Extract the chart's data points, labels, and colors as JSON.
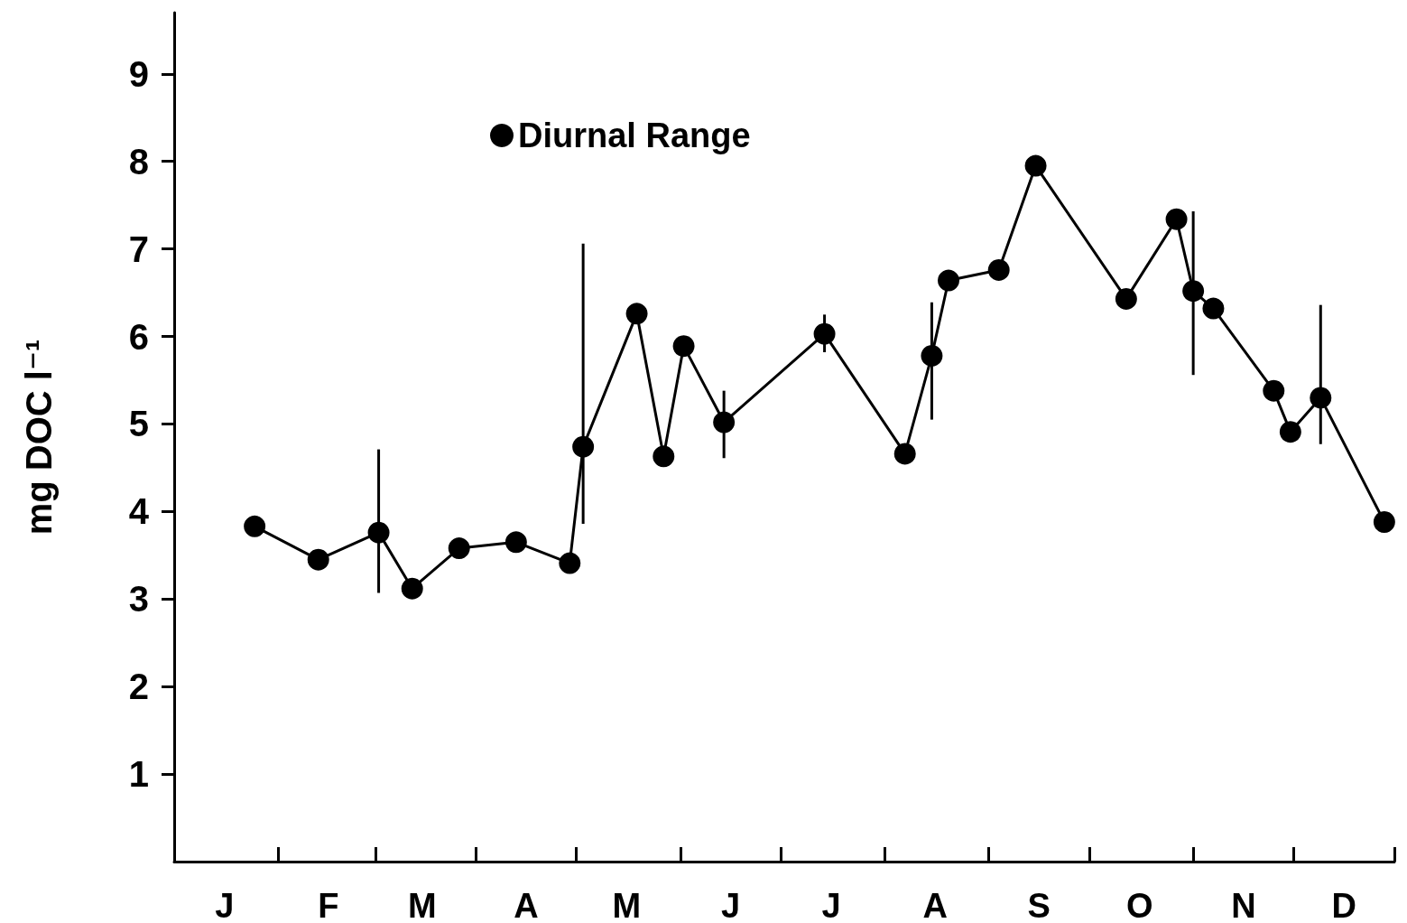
{
  "chart_data": {
    "type": "line",
    "ylabel": "mg DOC l⁻¹",
    "categories": [
      null,
      null,
      null,
      null,
      null,
      null,
      null,
      null,
      null,
      null,
      null,
      null,
      null,
      null,
      null,
      "J",
      null,
      null,
      null,
      null,
      null,
      null,
      null,
      null,
      null,
      null,
      null,
      null,
      null,
      null,
      null,
      null,
      null,
      null,
      null,
      null,
      null,
      null,
      null,
      null,
      null,
      null,
      null,
      null,
      null,
      null,
      "F",
      null,
      null,
      null,
      null,
      null,
      null,
      null,
      null,
      null,
      null,
      null,
      null,
      null,
      null,
      null,
      null,
      null,
      null,
      null,
      null,
      null,
      null,
      null,
      null,
      null,
      null,
      null,
      "M",
      null,
      null,
      null,
      null,
      null,
      null,
      null,
      null,
      null,
      null,
      null,
      null,
      null,
      null,
      null,
      null,
      null,
      null,
      null,
      null,
      null,
      null,
      null,
      null,
      null,
      null,
      null,
      null,
      null,
      null,
      "A",
      null,
      null,
      null,
      null,
      null,
      null,
      null,
      null,
      null,
      null,
      null,
      null,
      null,
      null,
      null,
      null,
      null,
      null,
      null,
      null,
      null,
      null,
      null,
      null,
      null,
      null,
      null,
      null,
      null,
      "M",
      null,
      null,
      null,
      null,
      null,
      null,
      null,
      null,
      null,
      null,
      null,
      null,
      null,
      null,
      null,
      null,
      null,
      null,
      null,
      null,
      null,
      null,
      null,
      null,
      null,
      null,
      null,
      null,
      null,
      null,
      "J",
      null,
      null,
      null,
      null,
      null,
      null,
      null,
      null,
      null,
      null,
      null,
      null,
      null,
      null,
      null,
      null,
      null,
      null,
      null,
      null,
      null,
      null,
      null,
      null,
      null,
      null,
      null,
      null,
      null,
      "J",
      null,
      null,
      null,
      null,
      null,
      null,
      null,
      null,
      null,
      null,
      null,
      null,
      null,
      null,
      null,
      null,
      null,
      null,
      null,
      null,
      null,
      null,
      null,
      null,
      null,
      null,
      null,
      null,
      null,
      null,
      "A",
      null,
      null,
      null,
      null,
      null,
      null,
      null,
      null,
      null,
      null,
      null,
      null,
      null,
      null,
      null,
      null,
      null,
      null,
      null,
      null,
      null,
      null,
      null,
      null,
      null,
      null,
      null,
      null,
      null,
      null,
      "S",
      null,
      null,
      null,
      null,
      null,
      null,
      null,
      null,
      null,
      null,
      null,
      null,
      null,
      null,
      null,
      null,
      null,
      null,
      null,
      null,
      null,
      null,
      null,
      null,
      null,
      null,
      null,
      null,
      null,
      "O",
      null,
      null,
      null,
      null,
      null,
      null,
      null,
      null,
      null,
      null,
      null,
      null,
      null,
      null,
      null,
      null,
      null,
      null,
      null,
      null,
      null,
      null,
      null,
      null,
      null,
      null,
      null,
      null,
      null,
      null,
      "N",
      null,
      null,
      null,
      null,
      null,
      null,
      null,
      null,
      null,
      null,
      null,
      null,
      null,
      null,
      null,
      null,
      null,
      null,
      null,
      null,
      null,
      null,
      null,
      null,
      null,
      null,
      null,
      null,
      null,
      "D",
      null,
      null,
      null,
      null,
      null,
      null,
      null,
      null,
      null,
      null,
      null,
      null,
      null,
      null,
      null
    ],
    "ylim": [
      0,
      9.7
    ],
    "yticks": [
      1,
      2,
      3,
      4,
      5,
      6,
      7,
      8,
      9
    ],
    "grid": false,
    "legend": "top left",
    "marker": "circle",
    "line_style": "solid",
    "series": [
      {
        "name": "Diurnal Range",
        "color": "#000000",
        "values": [
          null,
          null,
          null,
          null,
          null,
          null,
          null,
          null,
          null,
          null,
          null,
          null,
          null,
          null,
          null,
          null,
          null,
          null,
          null,
          null,
          null,
          null,
          null,
          null,
          3.83,
          null,
          null,
          null,
          null,
          null,
          null,
          null,
          null,
          null,
          null,
          null,
          null,
          null,
          null,
          null,
          null,
          null,
          null,
          3.45,
          null,
          null,
          null,
          null,
          null,
          null,
          null,
          null,
          null,
          null,
          null,
          null,
          null,
          null,
          null,
          null,
          null,
          3.76,
          null,
          null,
          null,
          null,
          null,
          null,
          null,
          null,
          null,
          3.12,
          null,
          null,
          null,
          null,
          null,
          null,
          null,
          null,
          null,
          null,
          null,
          null,
          null,
          3.58,
          null,
          null,
          null,
          null,
          null,
          null,
          null,
          null,
          null,
          null,
          null,
          null,
          null,
          null,
          null,
          null,
          3.65,
          null,
          null,
          null,
          null,
          null,
          null,
          null,
          null,
          null,
          null,
          null,
          null,
          null,
          null,
          null,
          3.41,
          null,
          null,
          null,
          4.74,
          null,
          null,
          null,
          null,
          null,
          null,
          null,
          null,
          null,
          null,
          null,
          null,
          null,
          null,
          null,
          6.26,
          null,
          null,
          null,
          null,
          null,
          null,
          null,
          4.63,
          null,
          null,
          null,
          null,
          null,
          5.89,
          null,
          null,
          null,
          null,
          null,
          null,
          null,
          null,
          null,
          null,
          null,
          5.02,
          null,
          null,
          null,
          null,
          null,
          null,
          null,
          null,
          null,
          null,
          null,
          null,
          null,
          null,
          null,
          null,
          null,
          null,
          null,
          null,
          null,
          null,
          null,
          null,
          null,
          null,
          null,
          null,
          null,
          6.03,
          null,
          null,
          null,
          null,
          null,
          null,
          null,
          null,
          null,
          null,
          null,
          null,
          null,
          null,
          null,
          null,
          null,
          null,
          null,
          null,
          null,
          null,
          null,
          4.66,
          null,
          null,
          null,
          null,
          null,
          null,
          null,
          5.78,
          null,
          null,
          null,
          null,
          6.64,
          null,
          null,
          null,
          null,
          null,
          null,
          null,
          null,
          null,
          null,
          null,
          null,
          null,
          null,
          6.76,
          null,
          null,
          null,
          null,
          null,
          null,
          null,
          null,
          null,
          null,
          7.95,
          null,
          null,
          null,
          null,
          null,
          null,
          null,
          null,
          null,
          null,
          null,
          null,
          null,
          null,
          null,
          null,
          null,
          null,
          null,
          null,
          null,
          null,
          null,
          null,
          null,
          null,
          6.43,
          null,
          null,
          null,
          null,
          null,
          null,
          null,
          null,
          null,
          null,
          null,
          null,
          null,
          null,
          7.34,
          null,
          null,
          null,
          null,
          6.52,
          null,
          null,
          null,
          null,
          null,
          6.32,
          null,
          null,
          null,
          null,
          null,
          null,
          null,
          null,
          null,
          null,
          null,
          null,
          null,
          null,
          null,
          null,
          null,
          5.38,
          null,
          null,
          null,
          null,
          4.91,
          null,
          null,
          null,
          null,
          null,
          null,
          null,
          null,
          5.3,
          null,
          null,
          null,
          null,
          null,
          null,
          null,
          null,
          null,
          null,
          null,
          null,
          null,
          null,
          null,
          null,
          null,
          null,
          3.88,
          null,
          null,
          null
        ],
        "errors": [
          null,
          null,
          null,
          null,
          null,
          null,
          null,
          null,
          null,
          null,
          null,
          null,
          null,
          null,
          null,
          null,
          null,
          null,
          null,
          null,
          null,
          null,
          null,
          null,
          null,
          null,
          null,
          null,
          null,
          null,
          null,
          null,
          null,
          null,
          null,
          null,
          null,
          null,
          null,
          null,
          null,
          null,
          null,
          null,
          null,
          null,
          null,
          null,
          null,
          null,
          null,
          null,
          null,
          null,
          null,
          null,
          null,
          null,
          null,
          null,
          null,
          [
            3.07,
            4.71
          ],
          null,
          null,
          null,
          null,
          null,
          null,
          null,
          null,
          null,
          null,
          null,
          null,
          null,
          null,
          null,
          null,
          null,
          null,
          null,
          null,
          null,
          null,
          null,
          null,
          null,
          null,
          null,
          null,
          null,
          null,
          null,
          null,
          null,
          null,
          null,
          null,
          null,
          null,
          null,
          null,
          null,
          null,
          null,
          null,
          null,
          null,
          null,
          null,
          null,
          null,
          null,
          null,
          null,
          null,
          null,
          null,
          null,
          null,
          null,
          null,
          [
            3.86,
            7.06
          ],
          null,
          null,
          null,
          null,
          null,
          null,
          null,
          null,
          null,
          null,
          null,
          null,
          null,
          null,
          null,
          null,
          null,
          null,
          null,
          null,
          null,
          null,
          null,
          null,
          null,
          null,
          null,
          null,
          null,
          null,
          null,
          null,
          null,
          null,
          null,
          null,
          null,
          null,
          null,
          null,
          null,
          [
            4.61,
            5.38
          ],
          null,
          null,
          null,
          null,
          null,
          null,
          null,
          null,
          null,
          null,
          null,
          null,
          null,
          null,
          null,
          null,
          null,
          null,
          null,
          null,
          null,
          null,
          null,
          null,
          null,
          null,
          null,
          null,
          null,
          [
            5.82,
            6.25
          ],
          null,
          null,
          null,
          null,
          null,
          null,
          null,
          null,
          null,
          null,
          null,
          null,
          null,
          null,
          null,
          null,
          null,
          null,
          null,
          null,
          null,
          null,
          null,
          null,
          null,
          null,
          null,
          null,
          null,
          null,
          null,
          [
            5.05,
            6.39
          ],
          null,
          null,
          null,
          null,
          null,
          null,
          null,
          null,
          null,
          null,
          null,
          null,
          null,
          null,
          null,
          null,
          null,
          null,
          null,
          null,
          null,
          null,
          null,
          null,
          null,
          null,
          null,
          null,
          null,
          null,
          null,
          null,
          null,
          null,
          null,
          null,
          null,
          null,
          null,
          null,
          null,
          null,
          null,
          null,
          null,
          null,
          null,
          null,
          null,
          null,
          null,
          null,
          null,
          null,
          null,
          null,
          null,
          null,
          null,
          null,
          null,
          null,
          null,
          null,
          null,
          null,
          null,
          null,
          null,
          null,
          null,
          null,
          null,
          null,
          null,
          null,
          null,
          [
            5.56,
            7.43
          ],
          null,
          null,
          null,
          null,
          null,
          null,
          null,
          null,
          null,
          null,
          null,
          null,
          null,
          null,
          null,
          null,
          null,
          null,
          null,
          null,
          null,
          null,
          null,
          null,
          null,
          null,
          null,
          null,
          null,
          null,
          null,
          null,
          null,
          null,
          null,
          null,
          null,
          [
            4.77,
            6.36
          ],
          null,
          null,
          null,
          null,
          null,
          null,
          null,
          null,
          null,
          null,
          null,
          null,
          null,
          null,
          null,
          null,
          null,
          null,
          null,
          null,
          null,
          null
        ]
      }
    ]
  }
}
